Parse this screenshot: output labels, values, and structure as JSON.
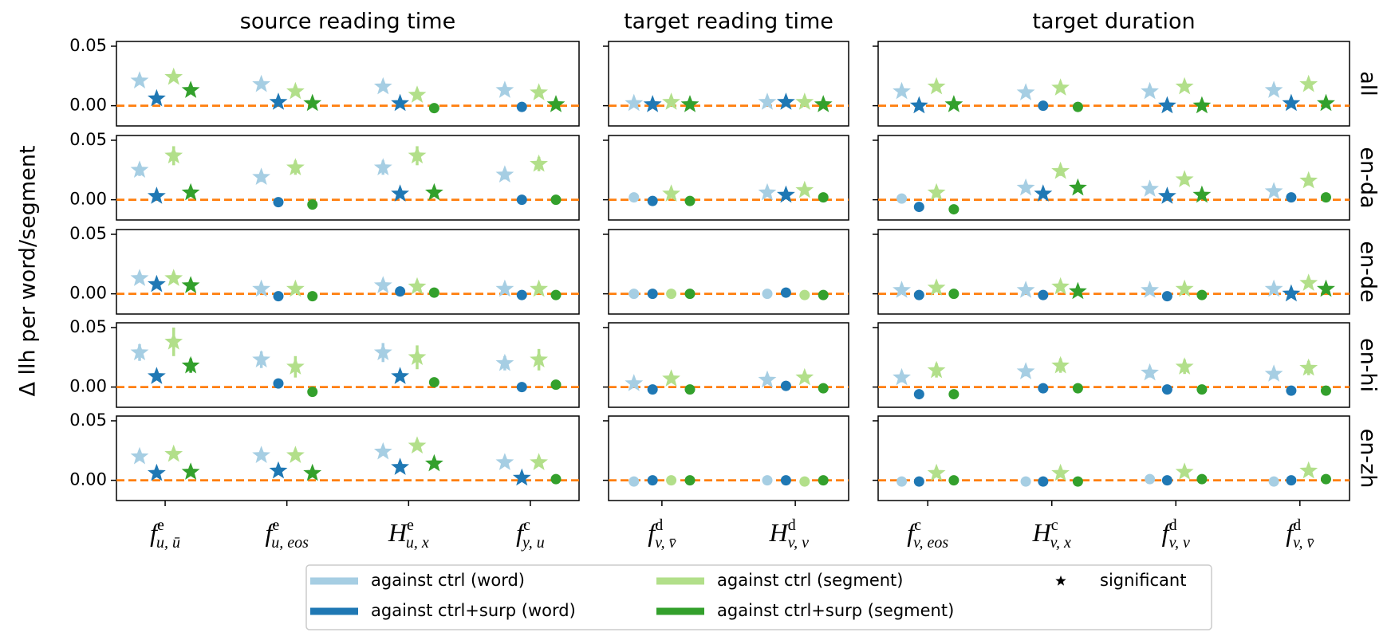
{
  "chart_data": {
    "type": "point",
    "ylabel": "Δ llh per word/segment",
    "ylim": [
      -0.017,
      0.054
    ],
    "yticks": [
      {
        "value": 0,
        "label": "0.00"
      },
      {
        "value": 0.05,
        "label": "0.05"
      }
    ],
    "reference_line": 0,
    "reference_color": "#ff7f0e",
    "row_labels": [
      "all",
      "en-da",
      "en-de",
      "en-hi",
      "en-zh"
    ],
    "series": [
      {
        "name": "against ctrl (word)",
        "color": "#a6cee3"
      },
      {
        "name": "against ctrl+surp (word)",
        "color": "#1f78b4"
      },
      {
        "name": "against ctrl (segment)",
        "color": "#b2df8a"
      },
      {
        "name": "against ctrl+surp (segment)",
        "color": "#33a02c"
      }
    ],
    "significance_label": "significant",
    "columns": [
      {
        "title": "source reading time",
        "categories": [
          {
            "base": "f",
            "sup": "e",
            "sub": "u, ū"
          },
          {
            "base": "f",
            "sup": "e",
            "sub": "u, eos"
          },
          {
            "base": "H",
            "sup": "e",
            "sub": "u, x"
          },
          {
            "base": "f",
            "sup": "c",
            "sub": "y, u"
          }
        ],
        "rows": [
          {
            "values": [
              [
                0.021,
                0.006,
                0.024,
                0.013
              ],
              [
                0.018,
                0.003,
                0.012,
                0.002
              ],
              [
                0.016,
                0.002,
                0.009,
                -0.002
              ],
              [
                0.013,
                -0.001,
                0.011,
                0.001
              ]
            ],
            "significant": [
              [
                1,
                1,
                1,
                1
              ],
              [
                1,
                1,
                1,
                1
              ],
              [
                1,
                1,
                1,
                0
              ],
              [
                1,
                0,
                1,
                1
              ]
            ]
          },
          {
            "values": [
              [
                0.025,
                0.003,
                0.037,
                0.006
              ],
              [
                0.019,
                -0.002,
                0.027,
                -0.004
              ],
              [
                0.027,
                0.005,
                0.037,
                0.006
              ],
              [
                0.021,
                0,
                0.03,
                0
              ]
            ],
            "errors": [
              [
                0.005,
                0.002,
                0.008,
                0.002
              ],
              [
                0.004,
                0.001,
                0.006,
                0.001
              ],
              [
                0.006,
                0.003,
                0.008,
                0.003
              ],
              [
                0.004,
                0.001,
                0.006,
                0.001
              ]
            ],
            "significant": [
              [
                1,
                1,
                1,
                1
              ],
              [
                1,
                0,
                1,
                0
              ],
              [
                1,
                1,
                1,
                1
              ],
              [
                1,
                0,
                1,
                0
              ]
            ]
          },
          {
            "values": [
              [
                0.013,
                0.008,
                0.013,
                0.007
              ],
              [
                0.004,
                -0.002,
                0.004,
                -0.002
              ],
              [
                0.007,
                0.002,
                0.006,
                0.001
              ],
              [
                0.004,
                -0.001,
                0.004,
                -0.001
              ]
            ],
            "significant": [
              [
                1,
                1,
                1,
                1
              ],
              [
                1,
                0,
                1,
                0
              ],
              [
                1,
                0,
                1,
                0
              ],
              [
                1,
                0,
                1,
                0
              ]
            ]
          },
          {
            "values": [
              [
                0.029,
                0.009,
                0.038,
                0.018
              ],
              [
                0.023,
                0.003,
                0.017,
                -0.004
              ],
              [
                0.029,
                0.009,
                0.025,
                0.004
              ],
              [
                0.02,
                0,
                0.023,
                0.002
              ]
            ],
            "errors": [
              [
                0.007,
                0.003,
                0.012,
                0.006
              ],
              [
                0.007,
                0.003,
                0.009,
                0.003
              ],
              [
                0.008,
                0.003,
                0.01,
                0.003
              ],
              [
                0.006,
                0.001,
                0.009,
                0.001
              ]
            ],
            "significant": [
              [
                1,
                1,
                1,
                1
              ],
              [
                1,
                0,
                1,
                0
              ],
              [
                1,
                1,
                1,
                0
              ],
              [
                1,
                0,
                1,
                0
              ]
            ]
          },
          {
            "values": [
              [
                0.02,
                0.006,
                0.022,
                0.007
              ],
              [
                0.021,
                0.008,
                0.021,
                0.006
              ],
              [
                0.024,
                0.011,
                0.029,
                0.014
              ],
              [
                0.015,
                0.002,
                0.015,
                0.001
              ]
            ],
            "significant": [
              [
                1,
                1,
                1,
                1
              ],
              [
                1,
                1,
                1,
                1
              ],
              [
                1,
                1,
                1,
                1
              ],
              [
                1,
                1,
                1,
                0
              ]
            ]
          }
        ]
      },
      {
        "title": "target reading time",
        "categories": [
          {
            "base": "f",
            "sup": "d",
            "sub": "v, v̄"
          },
          {
            "base": "H",
            "sup": "d",
            "sub": "v, v⃖"
          }
        ],
        "rows": [
          {
            "values": [
              [
                0.002,
                0.001,
                0.003,
                0.001
              ],
              [
                0.003,
                0.003,
                0.003,
                0.001
              ]
            ],
            "significant": [
              [
                1,
                1,
                1,
                1
              ],
              [
                1,
                1,
                1,
                1
              ]
            ]
          },
          {
            "values": [
              [
                0.002,
                -0.001,
                0.005,
                -0.001
              ],
              [
                0.006,
                0.004,
                0.008,
                0.002
              ]
            ],
            "errors": [
              [
                0.001,
                0.001,
                0.002,
                0.001
              ],
              [
                0.002,
                0.001,
                0.002,
                0.003
              ]
            ],
            "significant": [
              [
                0,
                0,
                1,
                0
              ],
              [
                1,
                1,
                1,
                0
              ]
            ]
          },
          {
            "values": [
              [
                0,
                0,
                0,
                0
              ],
              [
                0,
                0.001,
                -0.001,
                -0.001
              ]
            ],
            "significant": [
              [
                0,
                0,
                0,
                0
              ],
              [
                0,
                0,
                0,
                0
              ]
            ]
          },
          {
            "values": [
              [
                0.003,
                -0.002,
                0.007,
                -0.002
              ],
              [
                0.006,
                0.001,
                0.008,
                -0.001
              ]
            ],
            "errors": [
              [
                0.002,
                0.001,
                0.003,
                0.001
              ],
              [
                0.002,
                0.001,
                0.003,
                0.001
              ]
            ],
            "significant": [
              [
                1,
                0,
                1,
                0
              ],
              [
                1,
                0,
                1,
                0
              ]
            ]
          },
          {
            "values": [
              [
                -0.001,
                0,
                0,
                0
              ],
              [
                0,
                0,
                -0.001,
                0
              ]
            ],
            "significant": [
              [
                0,
                0,
                0,
                0
              ],
              [
                0,
                0,
                0,
                0
              ]
            ]
          }
        ]
      },
      {
        "title": "target duration",
        "categories": [
          {
            "base": "f",
            "sup": "c",
            "sub": "v, eos"
          },
          {
            "base": "H",
            "sup": "c",
            "sub": "v, x"
          },
          {
            "base": "f",
            "sup": "d",
            "sub": "v, v"
          },
          {
            "base": "f",
            "sup": "d",
            "sub": "v, v̄"
          }
        ],
        "rows": [
          {
            "values": [
              [
                0.012,
                0,
                0.016,
                0.001
              ],
              [
                0.011,
                0,
                0.015,
                -0.001
              ],
              [
                0.012,
                0,
                0.016,
                0
              ],
              [
                0.013,
                0.002,
                0.018,
                0.002
              ]
            ],
            "significant": [
              [
                1,
                1,
                1,
                1
              ],
              [
                1,
                0,
                1,
                0
              ],
              [
                1,
                1,
                1,
                1
              ],
              [
                1,
                1,
                1,
                1
              ]
            ]
          },
          {
            "values": [
              [
                0.001,
                -0.006,
                0.006,
                -0.008
              ],
              [
                0.01,
                0.005,
                0.024,
                0.01
              ],
              [
                0.009,
                0.003,
                0.017,
                0.004
              ],
              [
                0.007,
                0.002,
                0.016,
                0.002
              ]
            ],
            "errors": [
              [
                0.003,
                0.002,
                0.004,
                0.003
              ],
              [
                0.003,
                0.002,
                0.004,
                0.003
              ],
              [
                0.003,
                0.002,
                0.004,
                0.003
              ],
              [
                0.003,
                0.002,
                0.004,
                0.003
              ]
            ],
            "significant": [
              [
                0,
                0,
                1,
                0
              ],
              [
                1,
                1,
                1,
                1
              ],
              [
                1,
                1,
                1,
                1
              ],
              [
                1,
                0,
                1,
                0
              ]
            ]
          },
          {
            "values": [
              [
                0.003,
                -0.001,
                0.005,
                0
              ],
              [
                0.003,
                -0.001,
                0.006,
                0.002
              ],
              [
                0.003,
                -0.002,
                0.004,
                -0.001
              ],
              [
                0.004,
                0,
                0.009,
                0.004
              ]
            ],
            "significant": [
              [
                1,
                0,
                1,
                0
              ],
              [
                1,
                0,
                1,
                1
              ],
              [
                1,
                0,
                1,
                0
              ],
              [
                1,
                1,
                1,
                1
              ]
            ]
          },
          {
            "values": [
              [
                0.008,
                -0.006,
                0.014,
                -0.006
              ],
              [
                0.013,
                -0.001,
                0.018,
                -0.001
              ],
              [
                0.012,
                -0.002,
                0.017,
                -0.002
              ],
              [
                0.011,
                -0.003,
                0.016,
                -0.003
              ]
            ],
            "errors": [
              [
                0.004,
                0.001,
                0.006,
                0.001
              ],
              [
                0.004,
                0.001,
                0.006,
                0.001
              ],
              [
                0.004,
                0.001,
                0.006,
                0.001
              ],
              [
                0.004,
                0.001,
                0.006,
                0.001
              ]
            ],
            "significant": [
              [
                1,
                0,
                1,
                0
              ],
              [
                1,
                0,
                1,
                0
              ],
              [
                1,
                0,
                1,
                0
              ],
              [
                1,
                0,
                1,
                0
              ]
            ]
          },
          {
            "values": [
              [
                -0.001,
                -0.001,
                0.006,
                0
              ],
              [
                -0.001,
                -0.001,
                0.006,
                -0.001
              ],
              [
                0.001,
                0,
                0.007,
                0.001
              ],
              [
                -0.001,
                0,
                0.008,
                0.001
              ]
            ],
            "significant": [
              [
                0,
                0,
                1,
                0
              ],
              [
                0,
                0,
                1,
                0
              ],
              [
                0,
                0,
                1,
                0
              ],
              [
                0,
                0,
                1,
                0
              ]
            ]
          }
        ]
      }
    ]
  }
}
